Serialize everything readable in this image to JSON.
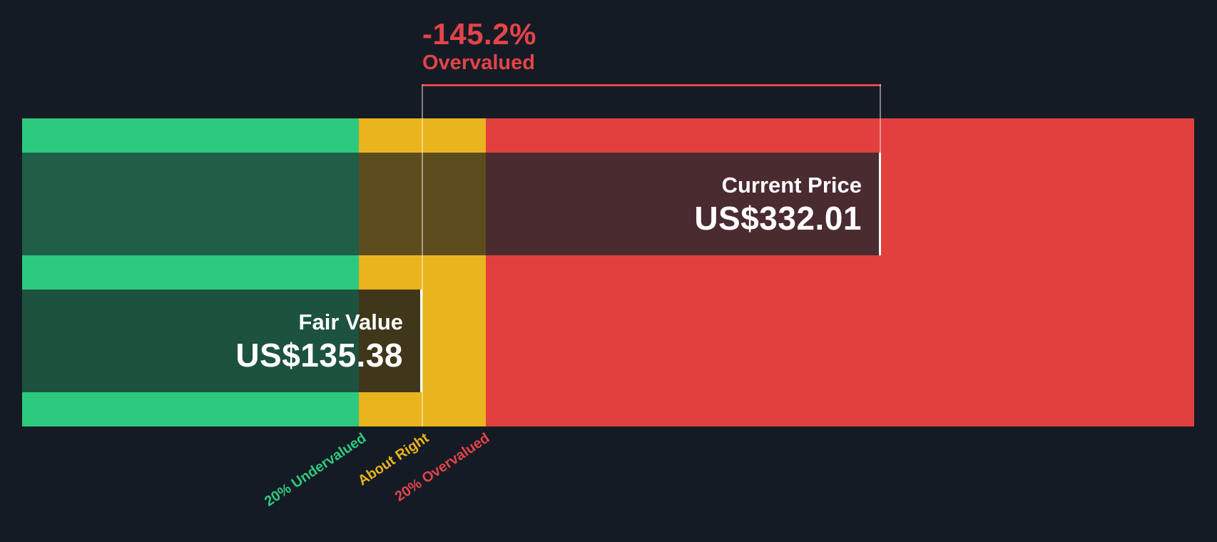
{
  "colors": {
    "bg": "#151b24",
    "zone-green": "#2dc97e",
    "zone-yellow": "#e9b41d",
    "zone-red": "#e2403f",
    "accent-red": "#e3444a",
    "bar-green-cp": "#205e46",
    "bar-yellow-cp": "#5d4d1e",
    "bar-red-cp": "#4a2b30",
    "bar-green-fv": "#1d523f",
    "bar-yellow-fv": "#403619",
    "text-white": "#ffffff",
    "marker-line": "rgba(255,255,255,0.45)"
  },
  "chart_data": {
    "type": "bar",
    "orientation": "horizontal",
    "currency": "US$",
    "badge": {
      "percent": "-145.2%",
      "status": "Overvalued"
    },
    "bars": [
      {
        "label": "Current Price",
        "value": 332.01,
        "value_label": "US$332.01"
      },
      {
        "label": "Fair Value",
        "value": 135.38,
        "value_label": "US$135.38"
      }
    ],
    "zones": [
      {
        "label": "20% Undervalued",
        "color": "#2dc97e"
      },
      {
        "label": "About Right",
        "color": "#e9b41d"
      },
      {
        "label": "20% Overvalued",
        "color": "#e2403f"
      }
    ],
    "annotation": "Bracket spans from Fair Value marker to Current Price marker indicating -145.2% Overvalued",
    "grid": false,
    "legend_position": "bottom-rotated"
  }
}
